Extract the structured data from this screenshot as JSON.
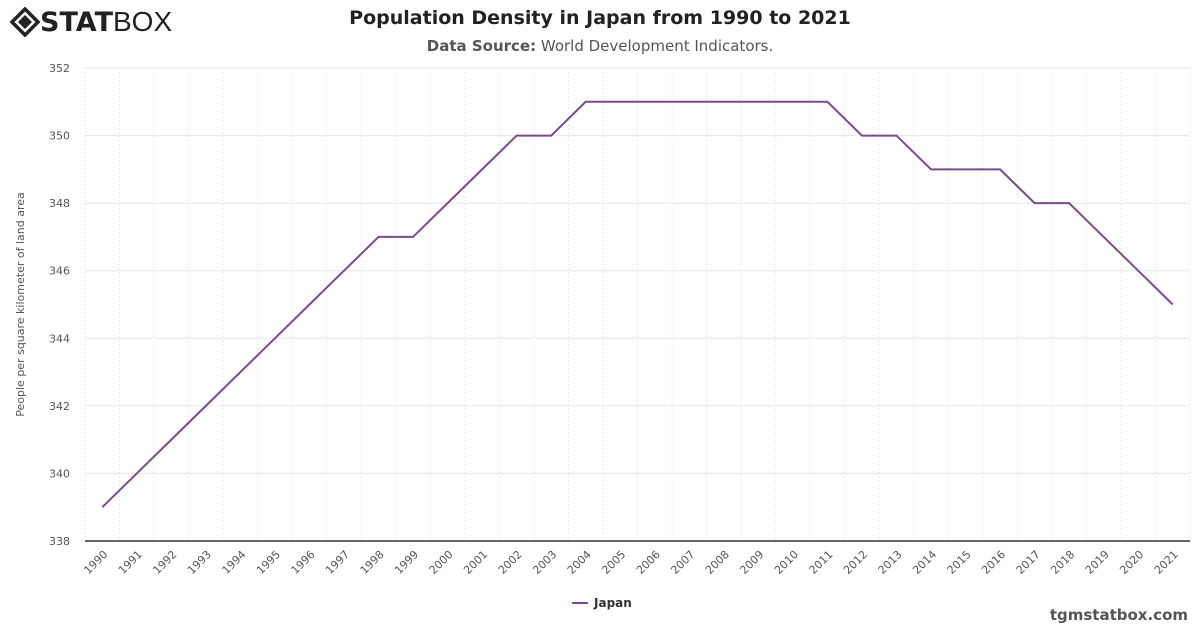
{
  "logo": {
    "bold": "STAT",
    "light": "BOX"
  },
  "watermark": "tgmstatbox.com",
  "chart_data": {
    "type": "line",
    "title": "Population Density in Japan from 1990 to 2021",
    "subtitle_label": "Data Source:",
    "subtitle_text": "World Development Indicators.",
    "xlabel": "",
    "ylabel": "People per square kilometer of land area",
    "ylim": [
      338,
      352
    ],
    "yticks": [
      338,
      340,
      342,
      344,
      346,
      348,
      350,
      352
    ],
    "grid": true,
    "legend_position": "bottom-center",
    "categories": [
      "1990",
      "1991",
      "1992",
      "1993",
      "1994",
      "1995",
      "1996",
      "1997",
      "1998",
      "1999",
      "2000",
      "2001",
      "2002",
      "2003",
      "2004",
      "2005",
      "2006",
      "2007",
      "2008",
      "2009",
      "2010",
      "2011",
      "2012",
      "2013",
      "2014",
      "2015",
      "2016",
      "2017",
      "2018",
      "2019",
      "2020",
      "2021"
    ],
    "series": [
      {
        "name": "Japan",
        "color": "#7b4a8e",
        "values": [
          339,
          340,
          341,
          342,
          343,
          344,
          345,
          346,
          347,
          347,
          348,
          349,
          350,
          350,
          351,
          351,
          351,
          351,
          351,
          351,
          351,
          351,
          350,
          350,
          349,
          349,
          349,
          348,
          348,
          347,
          346,
          345
        ]
      }
    ]
  }
}
